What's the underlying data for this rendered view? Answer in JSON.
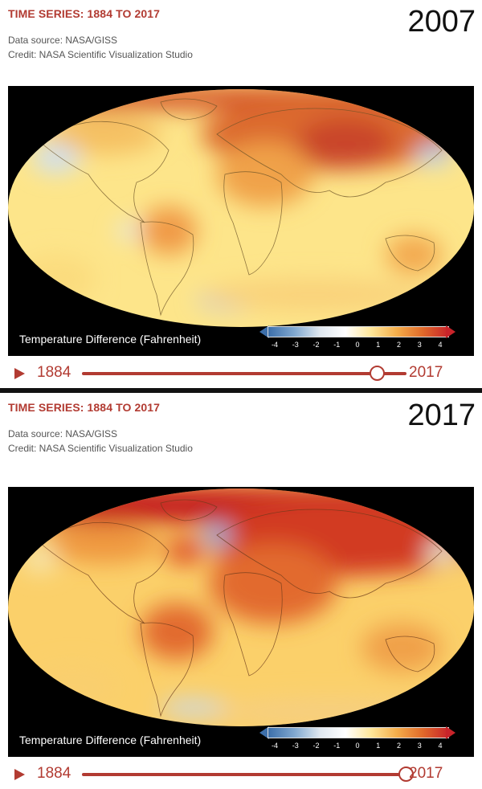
{
  "panels": [
    {
      "title": "TIME SERIES: 1884 TO 2017",
      "source": "Data source: NASA/GISS",
      "credit": "Credit: NASA Scientific Visualization Studio",
      "year": "2007",
      "legend_label": "Temperature Difference (Fahrenheit)",
      "legend_ticks": [
        "-4",
        "-3",
        "-2",
        "-1",
        "0",
        "1",
        "2",
        "3",
        "4"
      ],
      "timeline": {
        "start": "1884",
        "end": "2017",
        "position": 0.91
      }
    },
    {
      "title": "TIME SERIES: 1884 TO 2017",
      "source": "Data source: NASA/GISS",
      "credit": "Credit: NASA Scientific Visualization Studio",
      "year": "2017",
      "legend_label": "Temperature Difference (Fahrenheit)",
      "legend_ticks": [
        "-4",
        "-3",
        "-2",
        "-1",
        "0",
        "1",
        "2",
        "3",
        "4"
      ],
      "timeline": {
        "start": "1884",
        "end": "2017",
        "position": 1.0
      }
    }
  ],
  "colors": {
    "accent": "#b23b32",
    "warm": "#e0562a",
    "hot": "#c8201f",
    "neutral": "#fff3b0",
    "cool": "#bfd3ea"
  }
}
